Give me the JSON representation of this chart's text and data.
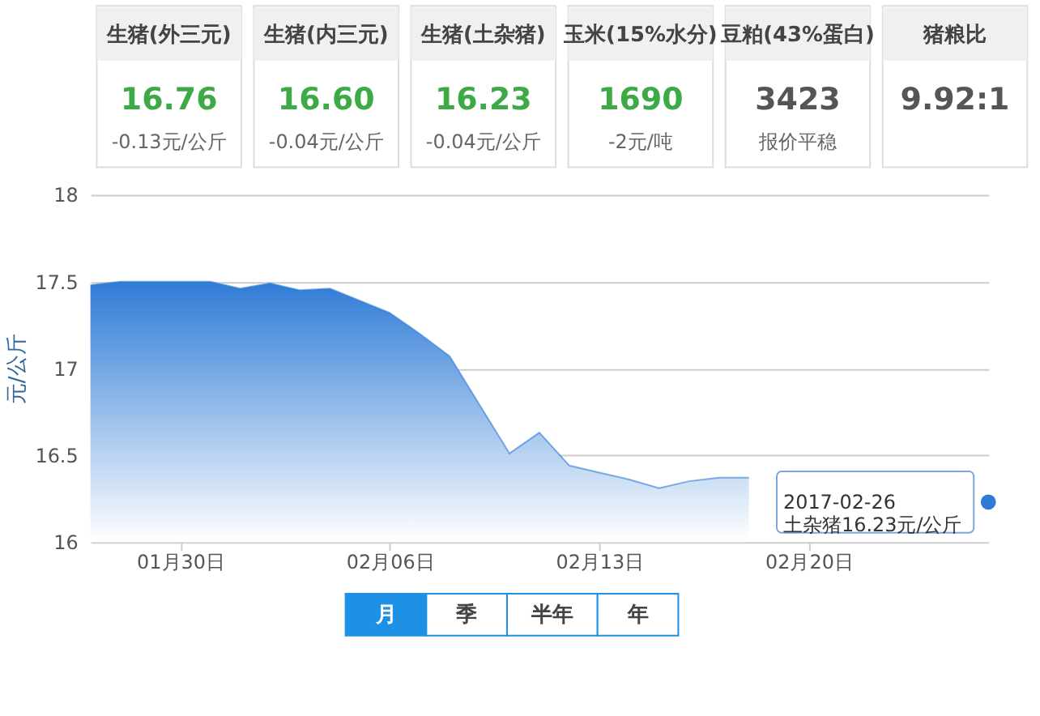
{
  "chart_data": [
    {
      "type": "other",
      "categories": [
        "生猪(外三元)",
        "生猪(内三元)",
        "生猪(土杂猪)",
        "玉米(15%水分)",
        "豆粕(43%蛋白)",
        "猪粮比"
      ],
      "value_labels": [
        "16.76",
        "16.60",
        "16.23",
        "1690",
        "3423",
        "9.92:1"
      ],
      "annotations": [
        "-0.13元/公斤",
        "-0.04元/公斤",
        "-0.04元/公斤",
        "-2元/吨",
        "报价平稳",
        null
      ]
    },
    {
      "type": "area",
      "ylabel": "元/公斤",
      "grid": "y",
      "x": [
        "2017-01-27",
        "2017-01-28",
        "2017-01-29",
        "2017-01-30",
        "2017-01-31",
        "2017-02-01",
        "2017-02-02",
        "2017-02-03",
        "2017-02-04",
        "2017-02-05",
        "2017-02-06",
        "2017-02-07",
        "2017-02-08",
        "2017-02-09",
        "2017-02-10",
        "2017-02-11",
        "2017-02-12",
        "2017-02-13",
        "2017-02-14",
        "2017-02-15",
        "2017-02-16",
        "2017-02-17",
        "2017-02-18"
      ],
      "series": [
        {
          "color": "#2f7bd6",
          "values": [
            17.48,
            17.5,
            17.5,
            17.5,
            17.5,
            17.46,
            17.49,
            17.45,
            17.46,
            17.39,
            17.32,
            17.2,
            17.07,
            16.79,
            16.51,
            16.63,
            16.44,
            16.4,
            16.36,
            16.31,
            16.35,
            16.37,
            16.37
          ]
        },
        {
          "type": "scatter",
          "color": "#2f7bd6",
          "x": [
            "2017-02-26"
          ],
          "values": [
            16.23
          ]
        }
      ],
      "xlim": [
        "2017-01-27",
        "2017-02-26"
      ],
      "xticks": [
        {
          "value": "2017-01-30",
          "label": "01月30日"
        },
        {
          "value": "2017-02-06",
          "label": "02月06日"
        },
        {
          "value": "2017-02-13",
          "label": "02月13日"
        },
        {
          "value": "2017-02-20",
          "label": "02月20日"
        }
      ],
      "ylim": [
        16,
        18
      ],
      "yticks": [
        16,
        16.5,
        17,
        17.5,
        18
      ],
      "annotations": [
        {
          "text": "2017-02-26\n土杂猪16.23元/公斤",
          "x": "2017-02-26",
          "y": 16.23
        },
        "月",
        "季",
        "半年",
        "年"
      ]
    }
  ]
}
